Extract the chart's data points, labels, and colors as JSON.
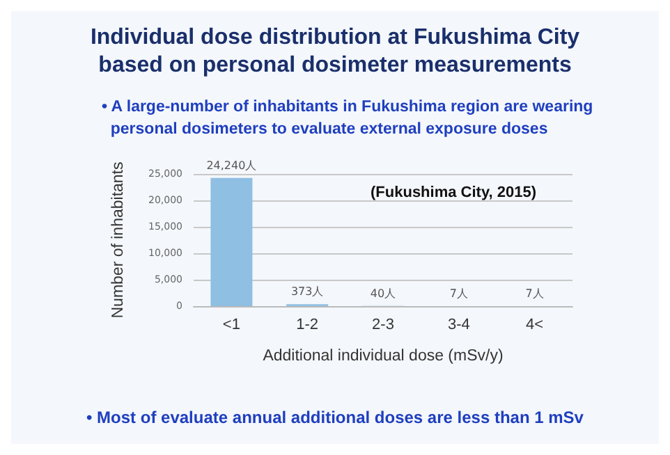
{
  "chart_data": {
    "type": "bar",
    "title": "Individual dose distribution at Fukushima City\nbased on personal dosimeter measurements",
    "subtitle": "• A large-number of inhabitants in Fukushima region are wearing\n  personal dosimeters to evaluate external exposure doses",
    "xlabel": "Additional individual dose (mSv/y)",
    "ylabel": "Number of inhabitants",
    "categories": [
      "<1",
      "1-2",
      "2-3",
      "3-4",
      "4<"
    ],
    "values": [
      24240,
      373,
      40,
      7,
      7
    ],
    "value_labels": [
      "24,240人",
      "373人",
      "40人",
      "7人",
      "7人"
    ],
    "color": "#8fbfe3",
    "ylim": [
      0,
      25000
    ],
    "yticks": [
      {
        "value": 0,
        "label": "0"
      },
      {
        "value": 5000,
        "label": "5,000"
      },
      {
        "value": 10000,
        "label": "10,000"
      },
      {
        "value": 15000,
        "label": "15,000"
      },
      {
        "value": 20000,
        "label": "20,000"
      },
      {
        "value": 25000,
        "label": "25,000"
      }
    ],
    "grid": "y",
    "annotations": [
      "(Fukushima City, 2015)",
      "• Most of evaluate annual additional doses are less than 1 mSv"
    ]
  }
}
